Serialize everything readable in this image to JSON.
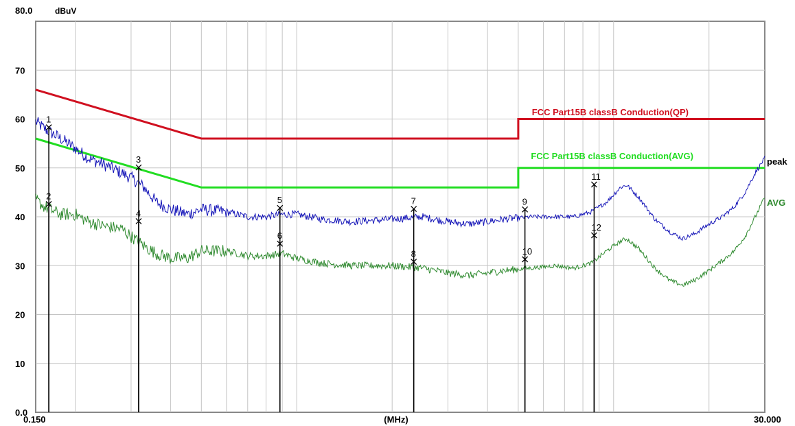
{
  "chart_data": {
    "type": "line",
    "ylabel": "dBuV",
    "xlabel": "(MHz)",
    "xscale": "log",
    "xlim": [
      0.15,
      30.0
    ],
    "ylim": [
      0,
      80
    ],
    "grid": true,
    "y_ticks": [
      "0.0",
      "10",
      "20",
      "30",
      "40",
      "50",
      "60",
      "70",
      "80.0"
    ],
    "x_tick_labels": [
      "0.150",
      "30.000"
    ],
    "limit_lines": [
      {
        "name": "FCC  Part15B classB Conduction(QP)",
        "color": "#d01020",
        "points": [
          [
            0.15,
            66
          ],
          [
            0.5,
            56
          ],
          [
            5.0,
            56
          ],
          [
            5.0,
            60
          ],
          [
            30.0,
            60
          ]
        ]
      },
      {
        "name": "FCC  Part15B classB Conduction(AVG)",
        "color": "#22dd22",
        "points": [
          [
            0.15,
            56
          ],
          [
            0.5,
            46
          ],
          [
            5.0,
            46
          ],
          [
            5.0,
            50
          ],
          [
            30.0,
            50
          ]
        ]
      }
    ],
    "series": [
      {
        "name": "peak",
        "color": "#1515b8",
        "points": [
          [
            0.15,
            59.5
          ],
          [
            0.16,
            58
          ],
          [
            0.18,
            56
          ],
          [
            0.2,
            54
          ],
          [
            0.22,
            52
          ],
          [
            0.25,
            50.5
          ],
          [
            0.28,
            49
          ],
          [
            0.3,
            48
          ],
          [
            0.33,
            46
          ],
          [
            0.36,
            43
          ],
          [
            0.4,
            41.5
          ],
          [
            0.45,
            40.5
          ],
          [
            0.5,
            41.5
          ],
          [
            0.6,
            41
          ],
          [
            0.7,
            40
          ],
          [
            0.8,
            40
          ],
          [
            0.9,
            40.5
          ],
          [
            1.0,
            40.5
          ],
          [
            1.2,
            39.5
          ],
          [
            1.5,
            39
          ],
          [
            2.0,
            39.5
          ],
          [
            2.5,
            40
          ],
          [
            3.0,
            39
          ],
          [
            3.5,
            38.5
          ],
          [
            4.0,
            39
          ],
          [
            4.5,
            39.5
          ],
          [
            5.5,
            40
          ],
          [
            6.5,
            40
          ],
          [
            7.5,
            40
          ],
          [
            8.5,
            41
          ],
          [
            9.5,
            43
          ],
          [
            10.5,
            46
          ],
          [
            11.0,
            46.5
          ],
          [
            12.0,
            44
          ],
          [
            13.5,
            39.5
          ],
          [
            15.0,
            37
          ],
          [
            16.5,
            35.5
          ],
          [
            18.0,
            36.5
          ],
          [
            20.0,
            38.5
          ],
          [
            22.0,
            40
          ],
          [
            24.0,
            42
          ],
          [
            26.0,
            45
          ],
          [
            28.0,
            49
          ],
          [
            30.0,
            52
          ]
        ]
      },
      {
        "name": "AVG",
        "color": "#2f8a2f",
        "points": [
          [
            0.15,
            43.5
          ],
          [
            0.16,
            42
          ],
          [
            0.18,
            40.5
          ],
          [
            0.2,
            40.5
          ],
          [
            0.22,
            39
          ],
          [
            0.25,
            38
          ],
          [
            0.28,
            37.5
          ],
          [
            0.3,
            36
          ],
          [
            0.33,
            34
          ],
          [
            0.36,
            32.5
          ],
          [
            0.4,
            31.5
          ],
          [
            0.45,
            31.5
          ],
          [
            0.5,
            33
          ],
          [
            0.6,
            33
          ],
          [
            0.7,
            32
          ],
          [
            0.8,
            32
          ],
          [
            0.9,
            32.5
          ],
          [
            1.0,
            31.5
          ],
          [
            1.2,
            30.5
          ],
          [
            1.5,
            30
          ],
          [
            2.0,
            30
          ],
          [
            2.5,
            29.5
          ],
          [
            3.0,
            28.5
          ],
          [
            3.5,
            28
          ],
          [
            4.0,
            28.5
          ],
          [
            4.5,
            29
          ],
          [
            5.5,
            29.5
          ],
          [
            6.5,
            30
          ],
          [
            7.5,
            29.5
          ],
          [
            8.5,
            30.5
          ],
          [
            9.5,
            33
          ],
          [
            10.5,
            35
          ],
          [
            11.0,
            35.5
          ],
          [
            12.0,
            33.5
          ],
          [
            13.5,
            29.5
          ],
          [
            15.0,
            27
          ],
          [
            16.5,
            26
          ],
          [
            18.0,
            27
          ],
          [
            20.0,
            29
          ],
          [
            22.0,
            31
          ],
          [
            24.0,
            33
          ],
          [
            26.0,
            36
          ],
          [
            28.0,
            40
          ],
          [
            30.0,
            44
          ]
        ]
      }
    ],
    "markers": [
      {
        "label": "1",
        "x": 0.165,
        "y": 58.3
      },
      {
        "label": "2",
        "x": 0.165,
        "y": 42.6
      },
      {
        "label": "3",
        "x": 0.317,
        "y": 50.1
      },
      {
        "label": "4",
        "x": 0.317,
        "y": 39.1
      },
      {
        "label": "5",
        "x": 0.885,
        "y": 41.8
      },
      {
        "label": "6",
        "x": 0.885,
        "y": 34.5
      },
      {
        "label": "7",
        "x": 2.34,
        "y": 41.6
      },
      {
        "label": "8",
        "x": 2.34,
        "y": 30.8
      },
      {
        "label": "9",
        "x": 5.25,
        "y": 41.5
      },
      {
        "label": "10",
        "x": 5.25,
        "y": 31.3
      },
      {
        "label": "11",
        "x": 8.68,
        "y": 46.6
      },
      {
        "label": "12",
        "x": 8.68,
        "y": 36.2
      }
    ]
  }
}
